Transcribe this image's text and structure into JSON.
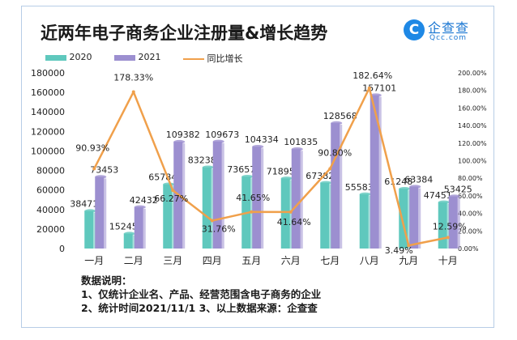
{
  "title": "近两年电子商务企业注册量&增长趋势",
  "logo": {
    "mark": "C",
    "name": "企查查",
    "domain": "Qcc.com"
  },
  "notes": {
    "heading": "数据说明：",
    "line1": "1、仅统计企业名、产品、经营范围含电子商务的企业",
    "line2": "2、统计时间2021/11/1    3、以上数据来源：企查查"
  },
  "colors": {
    "series_2020": "#5fc8bd",
    "series_2021": "#9c8fd0",
    "growth_line": "#f0a04b",
    "text": "#222222"
  },
  "chart_data": {
    "type": "bar",
    "title": "近两年电子商务企业注册量&增长趋势",
    "categories": [
      "一月",
      "二月",
      "三月",
      "四月",
      "五月",
      "六月",
      "七月",
      "八月",
      "九月",
      "十月"
    ],
    "series": [
      {
        "name": "2020",
        "type": "bar",
        "axis": "left",
        "values": [
          38471,
          15245,
          65784,
          83238,
          73657,
          71895,
          67382,
          55583,
          61248,
          47451
        ]
      },
      {
        "name": "2021",
        "type": "bar",
        "axis": "left",
        "values": [
          73453,
          42432,
          109382,
          109673,
          104334,
          101835,
          128568,
          157101,
          63384,
          53425
        ]
      },
      {
        "name": "同比增长",
        "type": "line",
        "axis": "right",
        "values": [
          90.93,
          178.33,
          66.27,
          31.76,
          41.65,
          41.64,
          90.8,
          182.64,
          3.49,
          12.59
        ]
      }
    ],
    "left_axis": {
      "min": 0,
      "max": 180000,
      "ticks": [
        0,
        20000,
        40000,
        60000,
        80000,
        100000,
        120000,
        140000,
        160000,
        180000
      ]
    },
    "right_axis": {
      "min": 0,
      "max": 200,
      "unit": "%",
      "ticks": [
        0,
        20,
        40,
        60,
        80,
        100,
        120,
        140,
        160,
        180,
        200
      ]
    },
    "legend": "top-left",
    "grid": false
  }
}
